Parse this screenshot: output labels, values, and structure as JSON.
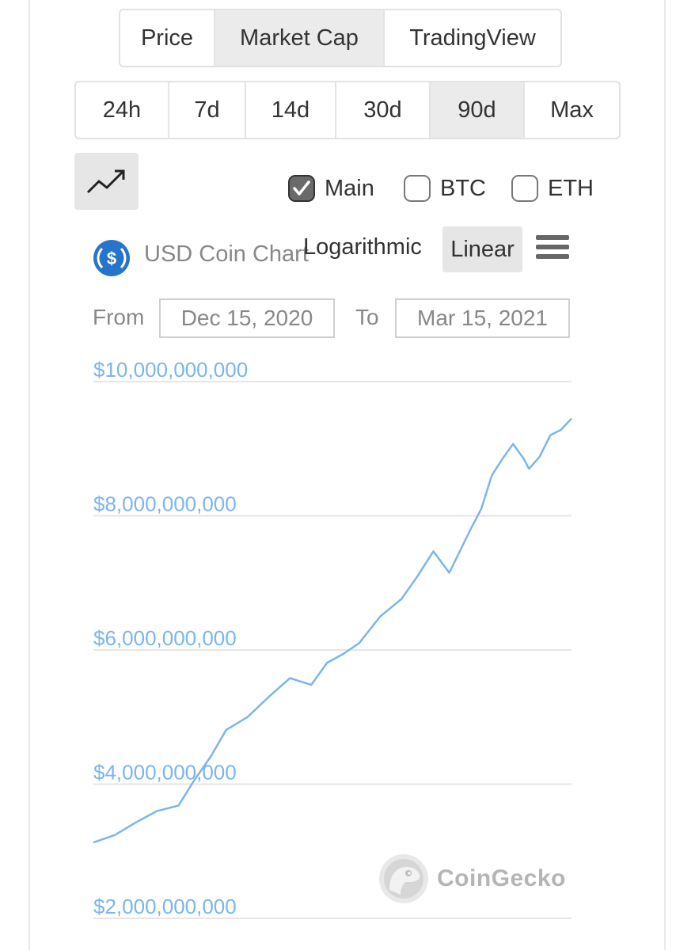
{
  "view_tabs": [
    {
      "label": "Price",
      "active": false
    },
    {
      "label": "Market Cap",
      "active": true
    },
    {
      "label": "TradingView",
      "active": false
    }
  ],
  "range_tabs": [
    {
      "label": "24h",
      "active": false
    },
    {
      "label": "7d",
      "active": false
    },
    {
      "label": "14d",
      "active": false
    },
    {
      "label": "30d",
      "active": false
    },
    {
      "label": "90d",
      "active": true
    },
    {
      "label": "Max",
      "active": false
    }
  ],
  "compare": [
    {
      "label": "Main",
      "checked": true
    },
    {
      "label": "BTC",
      "checked": false
    },
    {
      "label": "ETH",
      "checked": false
    }
  ],
  "chart_header": {
    "title": "USD Coin Chart",
    "scale_log": "Logarithmic",
    "scale_linear": "Linear",
    "active_scale": "Linear"
  },
  "date_range": {
    "from_label": "From",
    "from_value": "Dec 15, 2020",
    "to_label": "To",
    "to_value": "Mar 15, 2021"
  },
  "watermark": "CoinGecko",
  "colors": {
    "line": "#7cb5ec",
    "axis_text": "#7cb5ec",
    "grid": "#e6e6e6",
    "coin_icon": "#2775ca"
  },
  "chart_data": {
    "type": "line",
    "title": "USD Coin Chart",
    "ylabel": "",
    "xlabel": "",
    "ylim": [
      2000000000,
      10000000000
    ],
    "yticks": [
      "$2,000,000,000",
      "$4,000,000,000",
      "$6,000,000,000",
      "$8,000,000,000",
      "$10,000,000,000"
    ],
    "ytick_values": [
      2000000000,
      4000000000,
      6000000000,
      8000000000,
      10000000000
    ],
    "grid": true,
    "series": [
      {
        "x": [
          "2020-12-15",
          "2020-12-19",
          "2020-12-23",
          "2020-12-27",
          "2020-12-31",
          "2021-01-03",
          "2021-01-06",
          "2021-01-09",
          "2021-01-13",
          "2021-01-17",
          "2021-01-21",
          "2021-01-25",
          "2021-01-28",
          "2021-01-31",
          "2021-02-03",
          "2021-02-07",
          "2021-02-11",
          "2021-02-14",
          "2021-02-17",
          "2021-02-20",
          "2021-02-24",
          "2021-02-26",
          "2021-02-28",
          "2021-03-02",
          "2021-03-04",
          "2021-03-06",
          "2021-03-07",
          "2021-03-09",
          "2021-03-11",
          "2021-03-13",
          "2021-03-15"
        ],
        "y": [
          3130000000,
          3240000000,
          3430000000,
          3600000000,
          3680000000,
          4060000000,
          4400000000,
          4810000000,
          5000000000,
          5300000000,
          5580000000,
          5480000000,
          5810000000,
          5940000000,
          6100000000,
          6500000000,
          6760000000,
          7100000000,
          7470000000,
          7150000000,
          7800000000,
          8100000000,
          8600000000,
          8850000000,
          9070000000,
          8850000000,
          8700000000,
          8880000000,
          9200000000,
          9280000000,
          9450000000
        ]
      }
    ]
  }
}
